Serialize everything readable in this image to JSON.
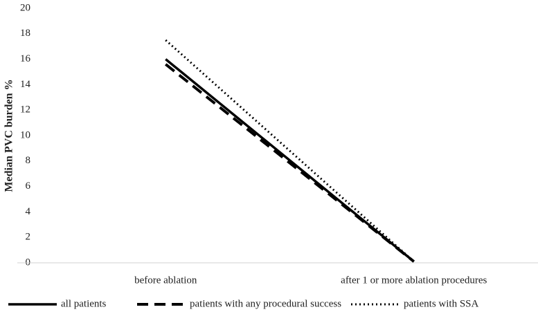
{
  "chart_data": {
    "type": "line",
    "y_label": "Median PVC burden %",
    "categories": [
      "before ablation",
      "after 1 or more ablation procedures"
    ],
    "series": [
      {
        "name": "all patients",
        "color": "#000000",
        "style": "solid",
        "values": [
          16.0,
          0.1
        ]
      },
      {
        "name": "patients with any procedural success",
        "color": "#000000",
        "style": "dash",
        "values": [
          15.6,
          0.1
        ]
      },
      {
        "name": "patients with SSA",
        "color": "#000000",
        "style": "dot",
        "values": [
          17.5,
          0.1
        ]
      }
    ],
    "ylim": [
      0,
      20
    ],
    "yticks": [
      0,
      2,
      4,
      6,
      8,
      10,
      12,
      14,
      16,
      18,
      20
    ],
    "grid": false,
    "legend": "bottom"
  }
}
